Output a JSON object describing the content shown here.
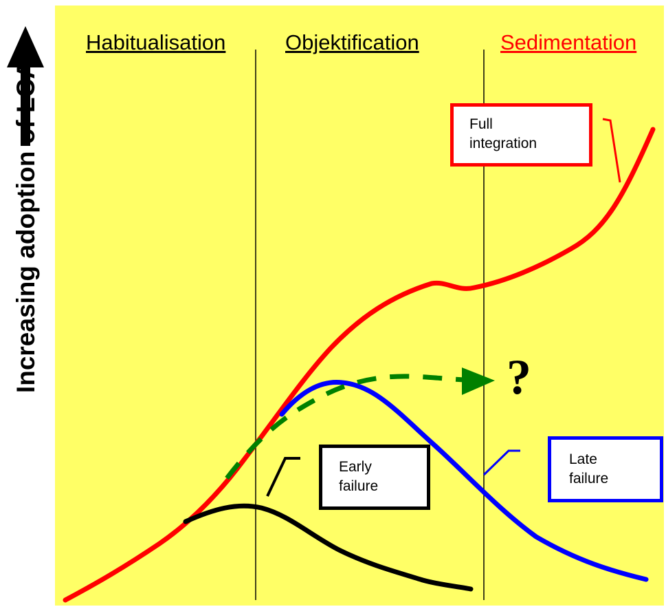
{
  "y_axis": {
    "label": "Increasing adoption of LCA"
  },
  "phases": [
    {
      "label": "Habitualisation",
      "color": "#000000"
    },
    {
      "label": "Objektification",
      "color": "#000000"
    },
    {
      "label": "Sedimentation",
      "color": "#ff0000"
    }
  ],
  "curves": [
    {
      "name": "full-integration",
      "color": "#ff0000"
    },
    {
      "name": "late-failure",
      "color": "#0000ff"
    },
    {
      "name": "early-failure",
      "color": "#000000"
    },
    {
      "name": "uncertain-future",
      "color": "#008000",
      "style": "dashed"
    }
  ],
  "callouts": {
    "full": {
      "line1": "Full",
      "line2": "integration",
      "border_color": "#ff0000"
    },
    "early": {
      "line1": "Early",
      "line2": "failure",
      "border_color": "#000000"
    },
    "late": {
      "line1": "Late",
      "line2": "failure",
      "border_color": "#0000ff"
    }
  },
  "question_mark": "?",
  "background_color": "#ffff66"
}
